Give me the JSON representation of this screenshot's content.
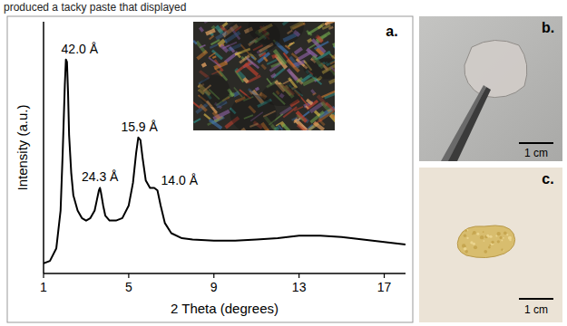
{
  "header_text": "produced a tacky paste that displayed",
  "chart_data": {
    "type": "line",
    "x_label": "2 Theta (degrees)",
    "y_label": "Intensity (a.u.)",
    "x": [
      1.0,
      1.3,
      1.6,
      1.8,
      1.9,
      2.0,
      2.05,
      2.1,
      2.15,
      2.2,
      2.3,
      2.4,
      2.6,
      2.8,
      3.0,
      3.2,
      3.4,
      3.5,
      3.6,
      3.65,
      3.7,
      3.8,
      3.9,
      4.1,
      4.4,
      4.7,
      5.0,
      5.2,
      5.35,
      5.45,
      5.55,
      5.65,
      5.8,
      6.0,
      6.2,
      6.35,
      6.5,
      6.7,
      7.0,
      7.5,
      8.0,
      9.0,
      10,
      11,
      12,
      13,
      14,
      15,
      16,
      17,
      18
    ],
    "values": [
      4,
      5,
      10,
      25,
      48,
      75,
      85,
      84,
      72,
      55,
      40,
      31,
      25,
      22,
      21,
      22,
      25,
      29,
      33,
      34,
      32,
      27,
      23,
      21,
      21,
      22,
      27,
      36,
      48,
      54,
      53,
      46,
      37,
      34,
      34,
      33,
      27,
      20,
      16,
      14,
      13.5,
      13,
      13,
      13.5,
      14,
      15,
      15,
      14.5,
      13.5,
      12.5,
      11.5
    ],
    "color": "#000000",
    "xlim": [
      1,
      18
    ],
    "xticks": [
      1,
      5,
      9,
      13,
      17
    ],
    "ylim": [
      0,
      100
    ],
    "tick_labels": "x",
    "annotations": [
      {
        "text": "42.0 Å",
        "x": 2.1,
        "y": 85
      },
      {
        "text": "24.3 Å",
        "x": 3.65,
        "y": 34
      },
      {
        "text": "15.9 Å",
        "x": 5.5,
        "y": 54
      },
      {
        "text": "14.0 Å",
        "x": 6.35,
        "y": 33
      }
    ]
  },
  "panels": {
    "a": {
      "letter": "a."
    },
    "b": {
      "letter": "b.",
      "scale_bar": "1 cm"
    },
    "c": {
      "letter": "c.",
      "scale_bar": "1 cm"
    }
  }
}
